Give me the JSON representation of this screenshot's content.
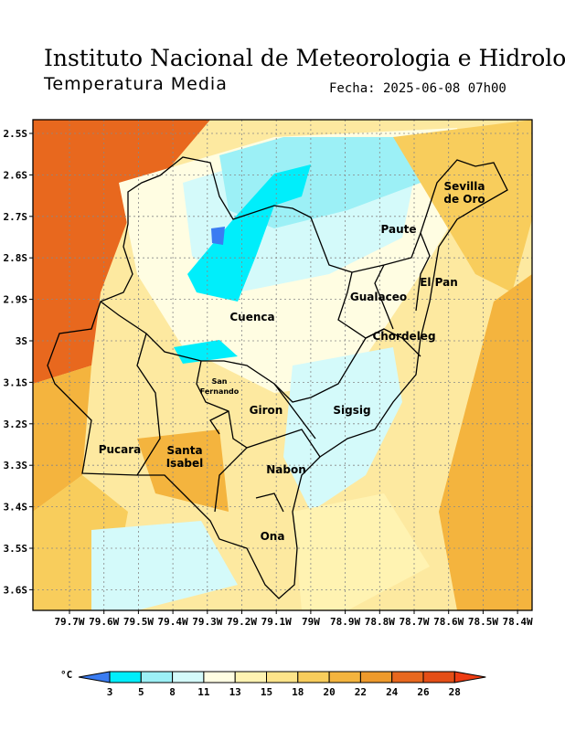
{
  "header": {
    "title": "Instituto Nacional de Meteorologia e Hidrologia",
    "subtitle": "Temperatura Media",
    "date": "Fecha: 2025-06-08 07h00"
  },
  "map": {
    "lat_labels": [
      "2.5S",
      "2.6S",
      "2.7S",
      "2.8S",
      "2.9S",
      "3S",
      "3.1S",
      "3.2S",
      "3.3S",
      "3.4S",
      "3.5S",
      "3.6S"
    ],
    "lon_labels": [
      "79.7W",
      "79.6W",
      "79.5W",
      "79.4W",
      "79.3W",
      "79.2W",
      "79.1W",
      "79W",
      "78.9W",
      "78.8W",
      "78.7W",
      "78.6W",
      "78.5W",
      "78.4W"
    ],
    "regions": [
      [
        "Sevilla",
        "de Oro"
      ],
      [
        "Paute"
      ],
      [
        "El Pan"
      ],
      [
        "Gualaceo"
      ],
      [
        "Chordeleg"
      ],
      [
        "Cuenca"
      ],
      [
        "San",
        "Fernando"
      ],
      [
        "Giron"
      ],
      [
        "Sigsig"
      ],
      [
        "Pucara"
      ],
      [
        "Santa",
        "Isabel"
      ],
      [
        "Nabon"
      ],
      [
        "Ona"
      ]
    ]
  },
  "colorbar": {
    "unit": "°C",
    "levels": [
      3,
      5,
      8,
      11,
      13,
      15,
      18,
      20,
      22,
      24,
      26,
      28
    ],
    "colors": [
      "#3a7cf2",
      "#00eefb",
      "#9cf0f6",
      "#d4fafa",
      "#fffde2",
      "#fff3b2",
      "#fde48a",
      "#f8cd5c",
      "#f4b43e",
      "#ee9a2c",
      "#e8681e",
      "#e44e16",
      "#ee3c12"
    ]
  }
}
